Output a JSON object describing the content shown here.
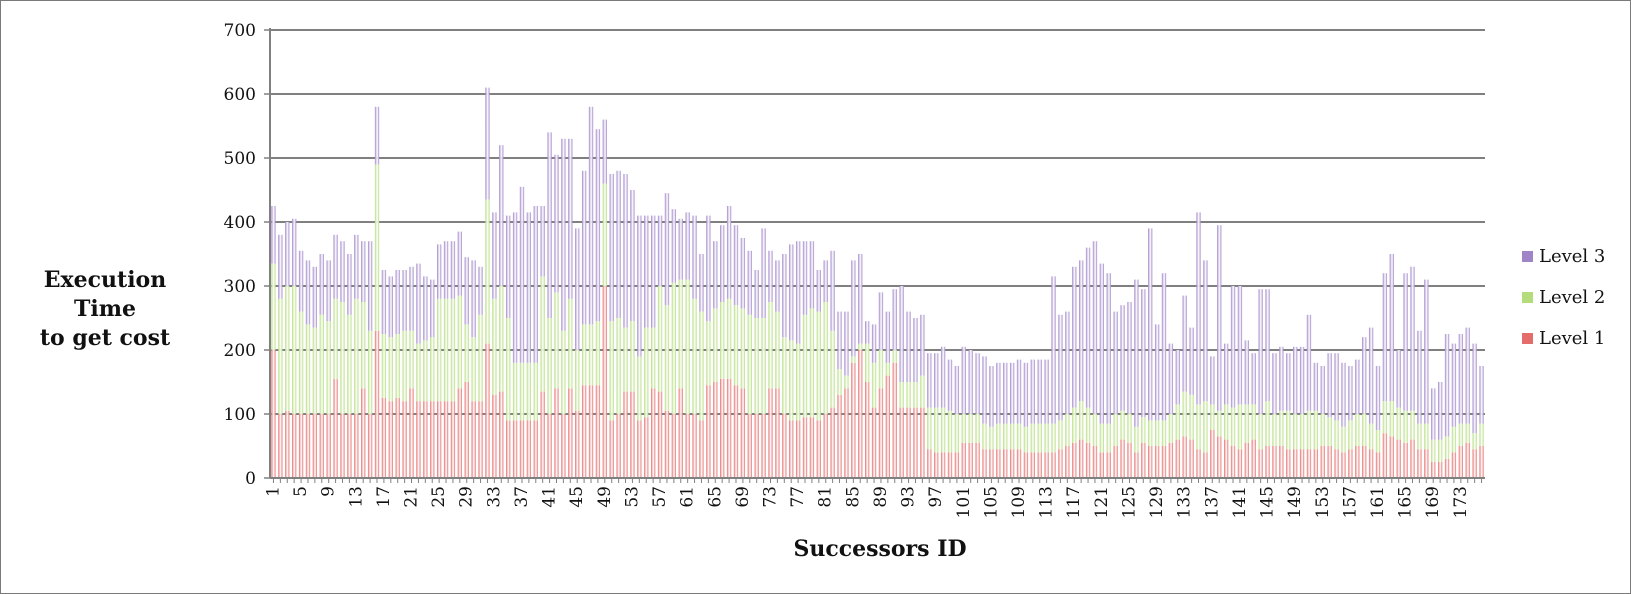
{
  "chart_data": {
    "type": "bar",
    "stacked": true,
    "orientation": "vertical",
    "title": "",
    "xlabel": "Successors ID",
    "ylabel_line1": "Execution Time",
    "ylabel_line2": "to get cost",
    "ylim": [
      0,
      700
    ],
    "yticks": [
      0,
      100,
      200,
      300,
      400,
      500,
      600,
      700
    ],
    "x_range": [
      1,
      175
    ],
    "x_tick_labels": [
      "1",
      "5",
      "9",
      "13",
      "17",
      "21",
      "25",
      "29",
      "33",
      "37",
      "41",
      "45",
      "49",
      "53",
      "57",
      "61",
      "65",
      "69",
      "73",
      "77",
      "81",
      "85",
      "89",
      "93",
      "97",
      "101",
      "105",
      "109",
      "113",
      "117",
      "121",
      "125",
      "129",
      "133",
      "137",
      "141",
      "145",
      "149",
      "153",
      "157",
      "161",
      "165",
      "169",
      "173"
    ],
    "grid": "horizontal",
    "legend_position": "right",
    "colors": {
      "Level 1": "#e46c6a",
      "Level 2": "#b4dc7c",
      "Level 3": "#9f84c8"
    },
    "series": [
      {
        "name": "Level 1",
        "values": [
          200,
          100,
          105,
          100,
          100,
          100,
          100,
          100,
          100,
          155,
          100,
          100,
          100,
          140,
          100,
          230,
          125,
          120,
          125,
          120,
          140,
          120,
          120,
          120,
          120,
          120,
          120,
          140,
          150,
          120,
          120,
          210,
          130,
          135,
          90,
          90,
          90,
          90,
          90,
          135,
          100,
          140,
          100,
          140,
          105,
          145,
          145,
          145,
          300,
          90,
          100,
          135,
          135,
          90,
          95,
          140,
          135,
          105,
          100,
          140,
          100,
          100,
          90,
          145,
          150,
          155,
          155,
          145,
          140,
          100,
          100,
          100,
          140,
          140,
          100,
          90,
          90,
          95,
          95,
          90,
          100,
          110,
          130,
          140,
          180,
          200,
          150,
          110,
          140,
          160,
          180,
          110,
          110,
          110,
          110,
          45,
          40,
          40,
          40,
          40,
          55,
          55,
          55,
          45,
          45,
          45,
          45,
          45,
          45,
          40,
          40,
          40,
          40,
          40,
          45,
          50,
          55,
          60,
          55,
          50,
          40,
          40,
          50,
          60,
          55,
          40,
          55,
          50,
          50,
          50,
          55,
          60,
          65,
          60,
          45,
          40,
          75,
          65,
          60,
          50,
          45,
          55,
          60,
          45,
          50,
          50,
          50,
          45,
          45,
          45,
          45,
          45,
          50,
          50,
          45,
          40,
          45,
          50,
          50,
          45,
          40,
          70,
          65,
          60,
          55,
          60,
          45,
          45,
          25,
          25,
          30,
          40,
          50,
          55,
          45,
          50
        ]
      },
      {
        "name": "Level 2",
        "values": [
          135,
          180,
          195,
          200,
          160,
          140,
          135,
          155,
          145,
          125,
          175,
          155,
          180,
          135,
          130,
          260,
          100,
          100,
          100,
          110,
          90,
          90,
          95,
          100,
          160,
          160,
          160,
          145,
          90,
          100,
          135,
          225,
          150,
          165,
          160,
          90,
          90,
          90,
          90,
          180,
          150,
          150,
          130,
          140,
          95,
          95,
          95,
          100,
          160,
          155,
          150,
          100,
          110,
          100,
          140,
          95,
          165,
          165,
          205,
          170,
          210,
          180,
          170,
          100,
          115,
          120,
          125,
          125,
          125,
          155,
          150,
          150,
          135,
          120,
          120,
          125,
          120,
          160,
          170,
          170,
          175,
          120,
          40,
          20,
          10,
          10,
          60,
          70,
          60,
          20,
          20,
          40,
          40,
          40,
          50,
          65,
          70,
          70,
          65,
          60,
          45,
          45,
          45,
          40,
          35,
          40,
          40,
          40,
          40,
          40,
          45,
          45,
          45,
          45,
          45,
          50,
          55,
          60,
          55,
          50,
          45,
          45,
          50,
          45,
          45,
          40,
          40,
          40,
          40,
          40,
          45,
          55,
          70,
          70,
          70,
          80,
          40,
          40,
          55,
          60,
          70,
          60,
          55,
          55,
          70,
          50,
          55,
          60,
          55,
          55,
          60,
          60,
          50,
          45,
          45,
          40,
          45,
          50,
          50,
          40,
          35,
          50,
          55,
          50,
          50,
          45,
          40,
          40,
          35,
          35,
          35,
          40,
          35,
          30,
          25,
          35
        ]
      },
      {
        "name": "Level 3",
        "values": [
          90,
          100,
          100,
          105,
          95,
          100,
          95,
          95,
          95,
          100,
          95,
          95,
          100,
          95,
          140,
          90,
          100,
          95,
          100,
          95,
          100,
          125,
          100,
          90,
          85,
          90,
          90,
          100,
          105,
          120,
          75,
          175,
          135,
          220,
          160,
          235,
          275,
          235,
          245,
          110,
          290,
          215,
          300,
          250,
          190,
          240,
          340,
          300,
          100,
          230,
          230,
          240,
          205,
          220,
          175,
          175,
          110,
          175,
          115,
          95,
          105,
          130,
          90,
          165,
          105,
          120,
          145,
          125,
          110,
          100,
          75,
          140,
          80,
          80,
          130,
          150,
          160,
          115,
          105,
          65,
          65,
          125,
          90,
          100,
          150,
          140,
          35,
          60,
          90,
          80,
          95,
          150,
          110,
          100,
          95,
          85,
          85,
          95,
          80,
          75,
          105,
          100,
          95,
          105,
          95,
          95,
          95,
          95,
          100,
          100,
          100,
          100,
          100,
          230,
          165,
          160,
          220,
          220,
          250,
          270,
          250,
          235,
          160,
          165,
          175,
          230,
          200,
          300,
          150,
          230,
          110,
          85,
          150,
          105,
          300,
          220,
          75,
          290,
          95,
          190,
          185,
          100,
          80,
          195,
          175,
          95,
          100,
          90,
          105,
          105,
          150,
          75,
          75,
          100,
          105,
          100,
          85,
          85,
          120,
          150,
          100,
          200,
          230,
          90,
          215,
          225,
          145,
          225,
          80,
          90,
          160,
          130,
          140,
          150,
          140,
          90
        ]
      }
    ]
  },
  "legend": {
    "items": [
      "Level 3",
      "Level 2",
      "Level 1"
    ]
  }
}
